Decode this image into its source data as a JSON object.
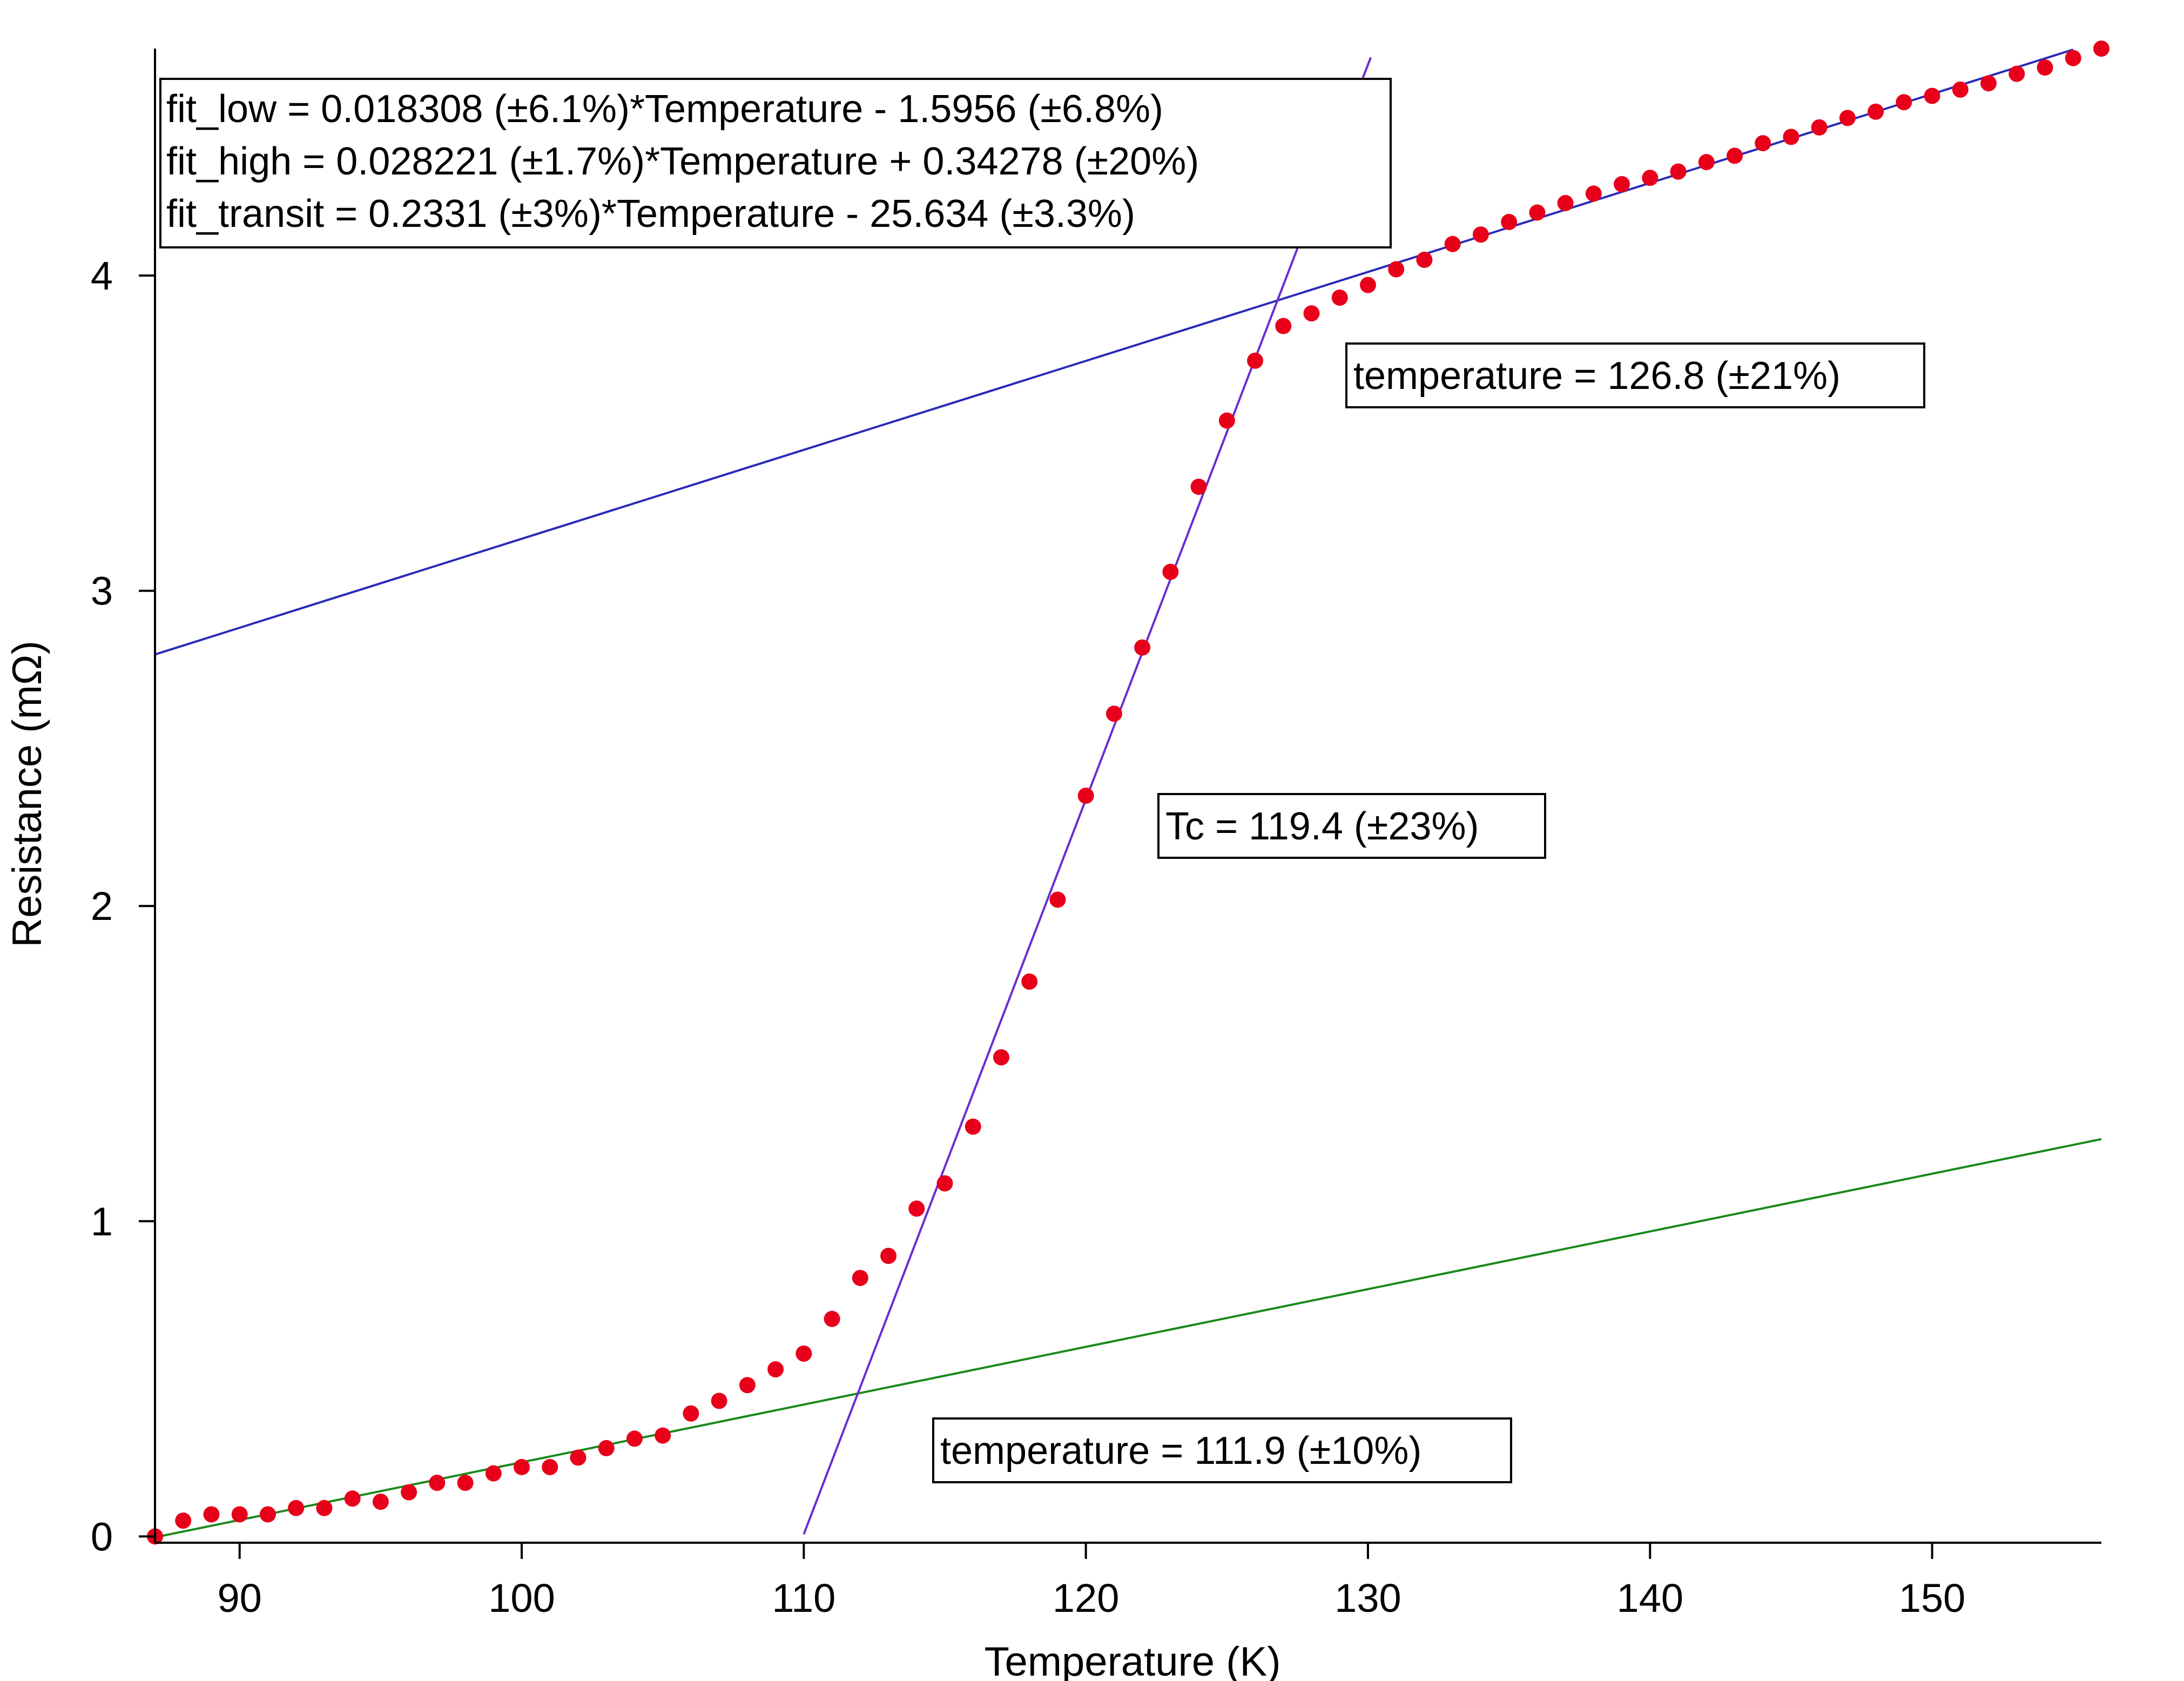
{
  "chart_data": {
    "type": "scatter",
    "xlabel": "Temperature (K)",
    "ylabel": "Resistance (mΩ)",
    "xlim": [
      87,
      156
    ],
    "ylim": [
      -0.02,
      4.72
    ],
    "xticks": [
      90,
      100,
      110,
      120,
      130,
      140,
      150
    ],
    "yticks": [
      0,
      1,
      2,
      3,
      4
    ],
    "grid": false,
    "series": [
      {
        "kind": "points",
        "color": "#e8001a",
        "x": [
          87,
          88,
          89,
          90,
          91,
          92,
          93,
          94,
          95,
          96,
          97,
          98,
          99,
          100,
          101,
          102,
          103,
          104,
          105,
          106,
          107,
          108,
          109,
          110,
          111,
          112,
          113,
          114,
          115,
          116,
          117,
          118,
          119,
          120,
          121,
          122,
          123,
          124,
          125,
          126,
          127,
          128,
          129,
          130,
          131,
          132,
          133,
          134,
          135,
          136,
          137,
          138,
          139,
          140,
          141,
          142,
          143,
          144,
          145,
          146,
          147,
          148,
          149,
          150,
          151,
          152,
          153,
          154,
          155,
          156
        ],
        "y": [
          0.0,
          0.05,
          0.07,
          0.07,
          0.07,
          0.09,
          0.09,
          0.12,
          0.11,
          0.14,
          0.17,
          0.17,
          0.2,
          0.22,
          0.22,
          0.25,
          0.28,
          0.31,
          0.32,
          0.39,
          0.43,
          0.48,
          0.53,
          0.58,
          0.69,
          0.82,
          0.89,
          1.04,
          1.12,
          1.3,
          1.52,
          1.76,
          2.02,
          2.35,
          2.61,
          2.82,
          3.06,
          3.33,
          3.54,
          3.73,
          3.84,
          3.88,
          3.93,
          3.97,
          4.02,
          4.05,
          4.1,
          4.13,
          4.17,
          4.2,
          4.23,
          4.26,
          4.29,
          4.31,
          4.33,
          4.36,
          4.38,
          4.42,
          4.44,
          4.47,
          4.5,
          4.52,
          4.55,
          4.57,
          4.59,
          4.61,
          4.64,
          4.66,
          4.69,
          4.72
        ]
      },
      {
        "kind": "line",
        "color": "#2a2ab8",
        "slope": 0.028221,
        "intercept": 0.34278,
        "x_range": [
          87,
          155
        ]
      },
      {
        "kind": "line",
        "color": "#1a8a1a",
        "slope": 0.018308,
        "intercept": -1.5956,
        "x_range": [
          87,
          156
        ]
      },
      {
        "kind": "line",
        "color": "#6a2cd0",
        "slope": 0.2331,
        "intercept": -25.634,
        "x_range": [
          110,
          130.1
        ]
      }
    ],
    "annotations": {
      "fit_lines": [
        "fit_low = 0.018308 (±6.1%)*Temperature - 1.5956 (±6.8%)",
        "fit_high = 0.028221 (±1.7%)*Temperature + 0.34278 (±20%)",
        "fit_transit = 0.2331 (±3%)*Temperature - 25.634 (±3.3%)"
      ],
      "high_temp": "temperature = 126.8 (±21%)",
      "tc": "Tc = 119.4 (±23%)",
      "low_temp": "temperature = 111.9 (±10%)"
    }
  }
}
